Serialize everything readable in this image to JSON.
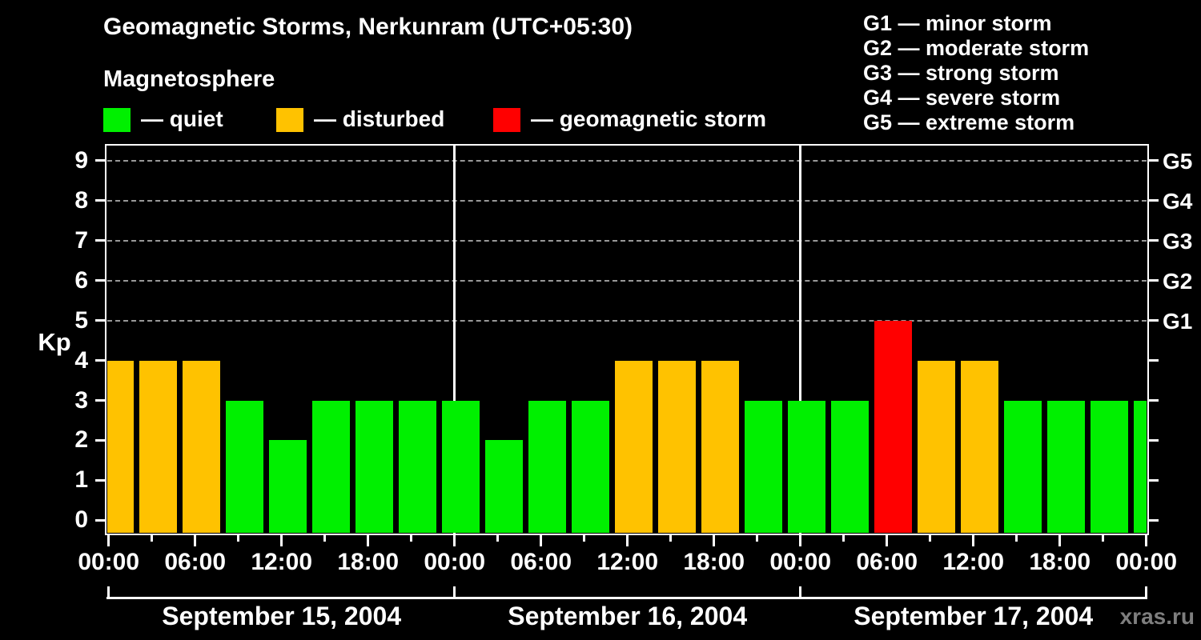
{
  "header": {
    "title": "Geomagnetic Storms, Nerkunram (UTC+05:30)",
    "subtitle": "Magnetosphere"
  },
  "legend": {
    "items": [
      {
        "name": "quiet",
        "label": "— quiet",
        "color": "#00F000"
      },
      {
        "name": "disturbed",
        "label": "— disturbed",
        "color": "#FFC200"
      },
      {
        "name": "geomagnetic-storm",
        "label": "— geomagnetic storm",
        "color": "#FF0000"
      }
    ]
  },
  "g_legend": {
    "items": [
      {
        "label": "G1 — minor storm"
      },
      {
        "label": "G2 — moderate storm"
      },
      {
        "label": "G3 — strong storm"
      },
      {
        "label": "G4 — severe storm"
      },
      {
        "label": "G5 — extreme storm"
      }
    ]
  },
  "watermark": {
    "label": "xras.ru"
  },
  "chart_data": {
    "type": "bar",
    "title": "Geomagnetic Storms, Nerkunram (UTC+05:30)",
    "subtitle": "Magnetosphere",
    "ylabel": "Kp",
    "ylim": [
      0,
      9
    ],
    "y_ticks": [
      0,
      1,
      2,
      3,
      4,
      5,
      6,
      7,
      8,
      9
    ],
    "grid": "dashed horizontal lines at Kp 5,6,7,8,9 only",
    "bar_interval_hours": 3,
    "x_tick_labels": [
      "00:00",
      "06:00",
      "12:00",
      "18:00"
    ],
    "closing_x_label": "00:00",
    "days": [
      {
        "date": "September 15, 2004",
        "kp": [
          4,
          4,
          4,
          3,
          2,
          3,
          3,
          3
        ]
      },
      {
        "date": "September 16, 2004",
        "kp": [
          3,
          2,
          3,
          3,
          4,
          4,
          4,
          3
        ]
      },
      {
        "date": "September 17, 2004",
        "kp": [
          3,
          3,
          5,
          4,
          4,
          3,
          3,
          3
        ]
      }
    ],
    "next_day_partial_kp": 3,
    "g_levels": [
      {
        "kp": 5,
        "label": "G1"
      },
      {
        "kp": 6,
        "label": "G2"
      },
      {
        "kp": 7,
        "label": "G3"
      },
      {
        "kp": 8,
        "label": "G4"
      },
      {
        "kp": 9,
        "label": "G5"
      }
    ],
    "colors": {
      "quiet": "#00F000",
      "disturbed": "#FFC200",
      "storm": "#FF0000",
      "frame": "#FFFFFF",
      "gridline": "#999999",
      "background": "#000000"
    },
    "color_rule": {
      "quiet": "Kp <= 3",
      "disturbed": "Kp = 4",
      "storm": "Kp >= 5"
    }
  }
}
